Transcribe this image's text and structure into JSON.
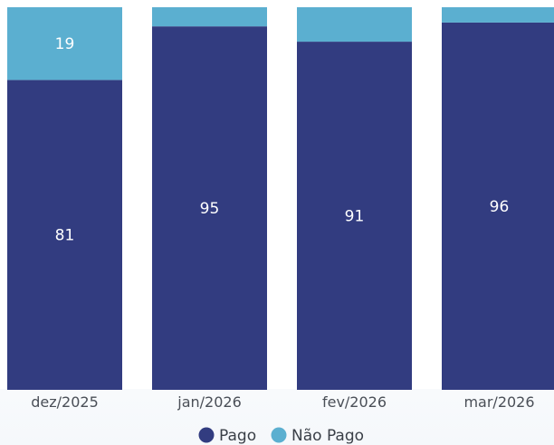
{
  "chart_data": {
    "type": "bar",
    "stacked": true,
    "normalized_percent": true,
    "categories": [
      "dez/2025",
      "jan/2026",
      "fev/2026",
      "mar/2026"
    ],
    "series": [
      {
        "name": "Pago",
        "color": "#323C80",
        "values": [
          81,
          95,
          91,
          96
        ],
        "labels": [
          "81",
          "95",
          "91",
          "96"
        ]
      },
      {
        "name": "Não Pago",
        "color": "#5BAFD0",
        "values": [
          19,
          5,
          9,
          4
        ],
        "labels": [
          "19",
          "",
          "",
          ""
        ]
      }
    ],
    "title": "",
    "xlabel": "",
    "ylabel": "",
    "ylim": [
      0,
      100
    ],
    "grid": false,
    "legend_position": "bottom-center"
  }
}
